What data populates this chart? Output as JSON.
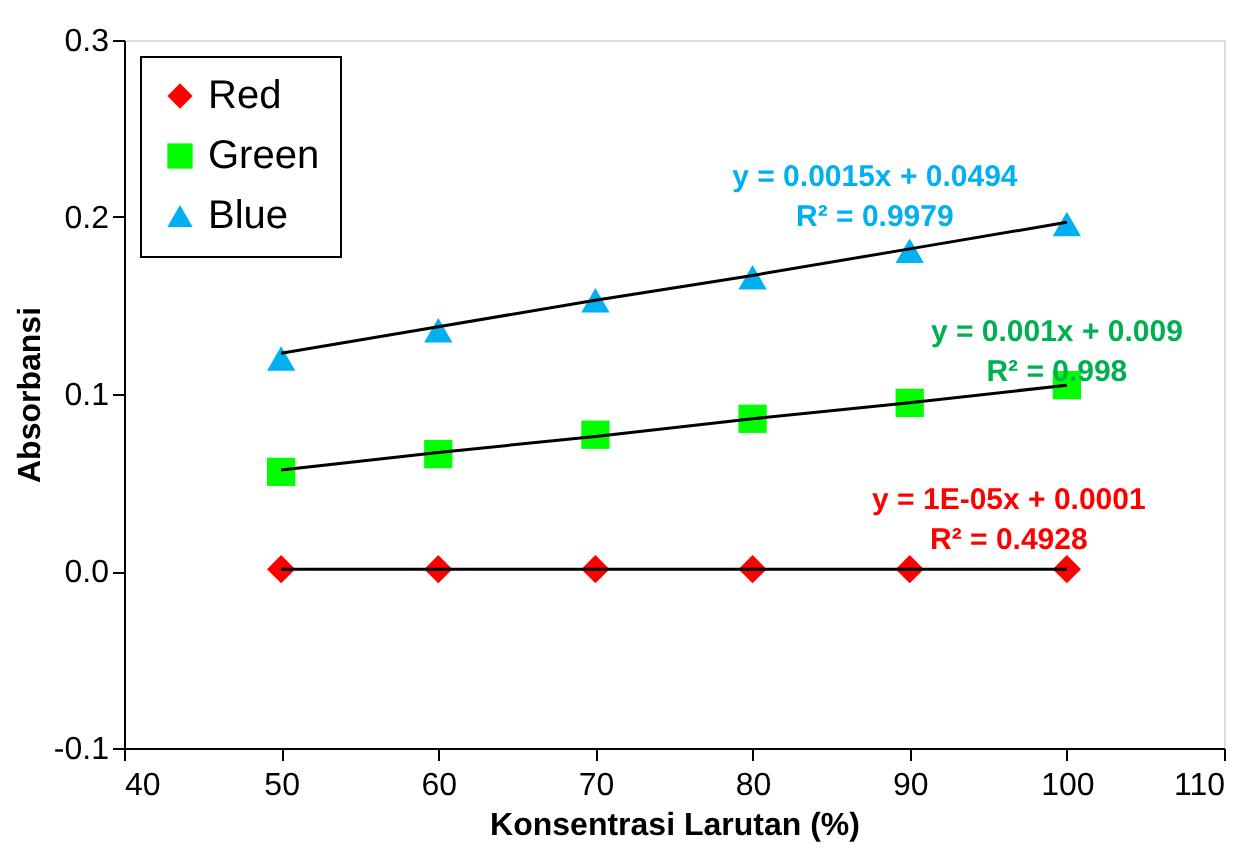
{
  "chart_data": {
    "type": "scatter",
    "xlabel": "Konsentrasi Larutan (%)",
    "ylabel": "Absorbansi",
    "x": [
      50,
      60,
      70,
      80,
      90,
      100
    ],
    "series": [
      {
        "name": "Red",
        "color": "#ff0000",
        "marker": "diamond",
        "values": [
          0.001,
          0.001,
          0.001,
          0.001,
          0.001,
          0.001
        ]
      },
      {
        "name": "Green",
        "color": "#00ff00",
        "marker": "square",
        "values": [
          0.056,
          0.066,
          0.077,
          0.086,
          0.095,
          0.105
        ]
      },
      {
        "name": "Blue",
        "color": "#00b0f0",
        "marker": "triangle",
        "values": [
          0.12,
          0.136,
          0.153,
          0.166,
          0.181,
          0.196
        ]
      },
      {
        "type": "line",
        "color": "#000000",
        "marker": "none",
        "values": [
          0.001,
          0.001,
          0.001,
          0.001,
          0.001,
          0.001
        ]
      },
      {
        "type": "line",
        "color": "#000000",
        "marker": "none",
        "values": [
          0.057,
          0.067,
          0.076,
          0.086,
          0.095,
          0.105
        ]
      },
      {
        "type": "line",
        "color": "#000000",
        "marker": "none",
        "values": [
          0.123,
          0.138,
          0.153,
          0.167,
          0.182,
          0.197
        ]
      }
    ],
    "annotations": [
      "y = 1E-05x + 0.0001\nR² = 0.4928",
      "y = 0.001x + 0.009\nR² = 0.998",
      "y = 0.0015x + 0.0494\nR² = 0.9979"
    ],
    "xlim": [
      40,
      110
    ],
    "xticks": [
      40,
      50,
      60,
      70,
      80,
      90,
      100,
      110
    ],
    "ylim": [
      -0.1,
      0.3
    ],
    "yticks": [
      -0.1,
      {
        "value": 0,
        "label": "0.0"
      },
      0.1,
      0.2,
      0.3
    ],
    "grid": false,
    "legend": "top left"
  }
}
